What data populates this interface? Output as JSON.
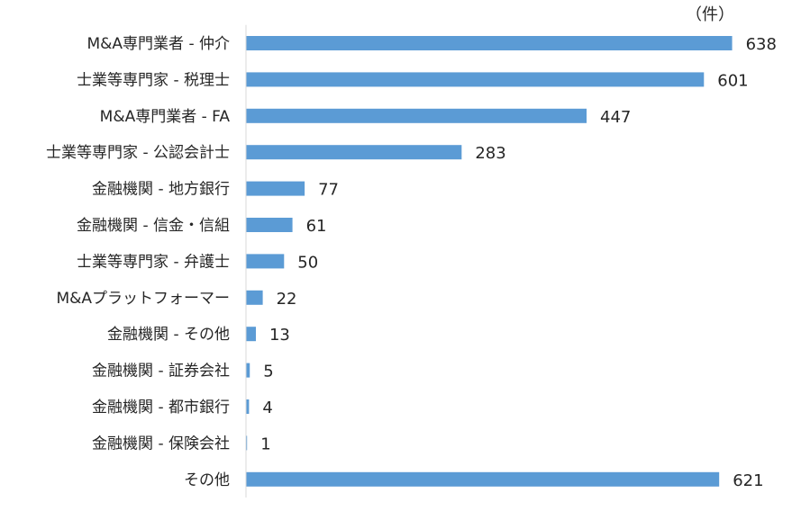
{
  "chart_data": {
    "type": "bar",
    "orientation": "horizontal",
    "unit": "（件）",
    "categories": [
      "M&A専門業者 - 仲介",
      "士業等専門家 - 税理士",
      "M&A専門業者 - FA",
      "士業等専門家 - 公認会計士",
      "金融機関 - 地方銀行",
      "金融機関 - 信金・信組",
      "士業等専門家 - 弁護士",
      "M&Aプラットフォーマー",
      "金融機関 - その他",
      "金融機関 - 証券会社",
      "金融機関 - 都市銀行",
      "金融機関 - 保険会社",
      "その他"
    ],
    "values": [
      638,
      601,
      447,
      283,
      77,
      61,
      50,
      22,
      13,
      5,
      4,
      1,
      621
    ],
    "xlim": [
      0,
      700
    ],
    "grid": false,
    "bar_color": "#5b9bd5",
    "axis_color": "#d9d9d9",
    "text_color": "#262626"
  }
}
